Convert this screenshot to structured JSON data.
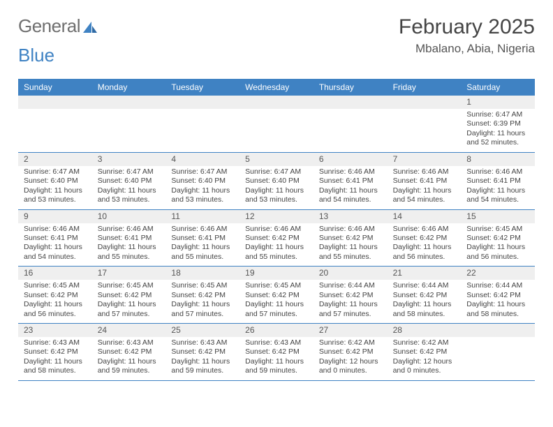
{
  "colors": {
    "header_bg": "#3f82c3",
    "header_fg": "#ffffff",
    "daynum_bg": "#efefef",
    "daynum_fg": "#555555",
    "body_fg": "#444444",
    "rule": "#3f82c3",
    "logo_gray": "#6f6f6f",
    "logo_blue": "#3f82c3",
    "page_bg": "#ffffff"
  },
  "logo": {
    "text_gray": "General",
    "text_blue": "Blue"
  },
  "title": "February 2025",
  "location": "Mbalano, Abia, Nigeria",
  "day_headers": [
    "Sunday",
    "Monday",
    "Tuesday",
    "Wednesday",
    "Thursday",
    "Friday",
    "Saturday"
  ],
  "weeks": [
    [
      {
        "n": "",
        "lines": []
      },
      {
        "n": "",
        "lines": []
      },
      {
        "n": "",
        "lines": []
      },
      {
        "n": "",
        "lines": []
      },
      {
        "n": "",
        "lines": []
      },
      {
        "n": "",
        "lines": []
      },
      {
        "n": "1",
        "lines": [
          "Sunrise: 6:47 AM",
          "Sunset: 6:39 PM",
          "Daylight: 11 hours and 52 minutes."
        ]
      }
    ],
    [
      {
        "n": "2",
        "lines": [
          "Sunrise: 6:47 AM",
          "Sunset: 6:40 PM",
          "Daylight: 11 hours and 53 minutes."
        ]
      },
      {
        "n": "3",
        "lines": [
          "Sunrise: 6:47 AM",
          "Sunset: 6:40 PM",
          "Daylight: 11 hours and 53 minutes."
        ]
      },
      {
        "n": "4",
        "lines": [
          "Sunrise: 6:47 AM",
          "Sunset: 6:40 PM",
          "Daylight: 11 hours and 53 minutes."
        ]
      },
      {
        "n": "5",
        "lines": [
          "Sunrise: 6:47 AM",
          "Sunset: 6:40 PM",
          "Daylight: 11 hours and 53 minutes."
        ]
      },
      {
        "n": "6",
        "lines": [
          "Sunrise: 6:46 AM",
          "Sunset: 6:41 PM",
          "Daylight: 11 hours and 54 minutes."
        ]
      },
      {
        "n": "7",
        "lines": [
          "Sunrise: 6:46 AM",
          "Sunset: 6:41 PM",
          "Daylight: 11 hours and 54 minutes."
        ]
      },
      {
        "n": "8",
        "lines": [
          "Sunrise: 6:46 AM",
          "Sunset: 6:41 PM",
          "Daylight: 11 hours and 54 minutes."
        ]
      }
    ],
    [
      {
        "n": "9",
        "lines": [
          "Sunrise: 6:46 AM",
          "Sunset: 6:41 PM",
          "Daylight: 11 hours and 54 minutes."
        ]
      },
      {
        "n": "10",
        "lines": [
          "Sunrise: 6:46 AM",
          "Sunset: 6:41 PM",
          "Daylight: 11 hours and 55 minutes."
        ]
      },
      {
        "n": "11",
        "lines": [
          "Sunrise: 6:46 AM",
          "Sunset: 6:41 PM",
          "Daylight: 11 hours and 55 minutes."
        ]
      },
      {
        "n": "12",
        "lines": [
          "Sunrise: 6:46 AM",
          "Sunset: 6:42 PM",
          "Daylight: 11 hours and 55 minutes."
        ]
      },
      {
        "n": "13",
        "lines": [
          "Sunrise: 6:46 AM",
          "Sunset: 6:42 PM",
          "Daylight: 11 hours and 55 minutes."
        ]
      },
      {
        "n": "14",
        "lines": [
          "Sunrise: 6:46 AM",
          "Sunset: 6:42 PM",
          "Daylight: 11 hours and 56 minutes."
        ]
      },
      {
        "n": "15",
        "lines": [
          "Sunrise: 6:45 AM",
          "Sunset: 6:42 PM",
          "Daylight: 11 hours and 56 minutes."
        ]
      }
    ],
    [
      {
        "n": "16",
        "lines": [
          "Sunrise: 6:45 AM",
          "Sunset: 6:42 PM",
          "Daylight: 11 hours and 56 minutes."
        ]
      },
      {
        "n": "17",
        "lines": [
          "Sunrise: 6:45 AM",
          "Sunset: 6:42 PM",
          "Daylight: 11 hours and 57 minutes."
        ]
      },
      {
        "n": "18",
        "lines": [
          "Sunrise: 6:45 AM",
          "Sunset: 6:42 PM",
          "Daylight: 11 hours and 57 minutes."
        ]
      },
      {
        "n": "19",
        "lines": [
          "Sunrise: 6:45 AM",
          "Sunset: 6:42 PM",
          "Daylight: 11 hours and 57 minutes."
        ]
      },
      {
        "n": "20",
        "lines": [
          "Sunrise: 6:44 AM",
          "Sunset: 6:42 PM",
          "Daylight: 11 hours and 57 minutes."
        ]
      },
      {
        "n": "21",
        "lines": [
          "Sunrise: 6:44 AM",
          "Sunset: 6:42 PM",
          "Daylight: 11 hours and 58 minutes."
        ]
      },
      {
        "n": "22",
        "lines": [
          "Sunrise: 6:44 AM",
          "Sunset: 6:42 PM",
          "Daylight: 11 hours and 58 minutes."
        ]
      }
    ],
    [
      {
        "n": "23",
        "lines": [
          "Sunrise: 6:43 AM",
          "Sunset: 6:42 PM",
          "Daylight: 11 hours and 58 minutes."
        ]
      },
      {
        "n": "24",
        "lines": [
          "Sunrise: 6:43 AM",
          "Sunset: 6:42 PM",
          "Daylight: 11 hours and 59 minutes."
        ]
      },
      {
        "n": "25",
        "lines": [
          "Sunrise: 6:43 AM",
          "Sunset: 6:42 PM",
          "Daylight: 11 hours and 59 minutes."
        ]
      },
      {
        "n": "26",
        "lines": [
          "Sunrise: 6:43 AM",
          "Sunset: 6:42 PM",
          "Daylight: 11 hours and 59 minutes."
        ]
      },
      {
        "n": "27",
        "lines": [
          "Sunrise: 6:42 AM",
          "Sunset: 6:42 PM",
          "Daylight: 12 hours and 0 minutes."
        ]
      },
      {
        "n": "28",
        "lines": [
          "Sunrise: 6:42 AM",
          "Sunset: 6:42 PM",
          "Daylight: 12 hours and 0 minutes."
        ]
      },
      {
        "n": "",
        "lines": []
      }
    ]
  ]
}
